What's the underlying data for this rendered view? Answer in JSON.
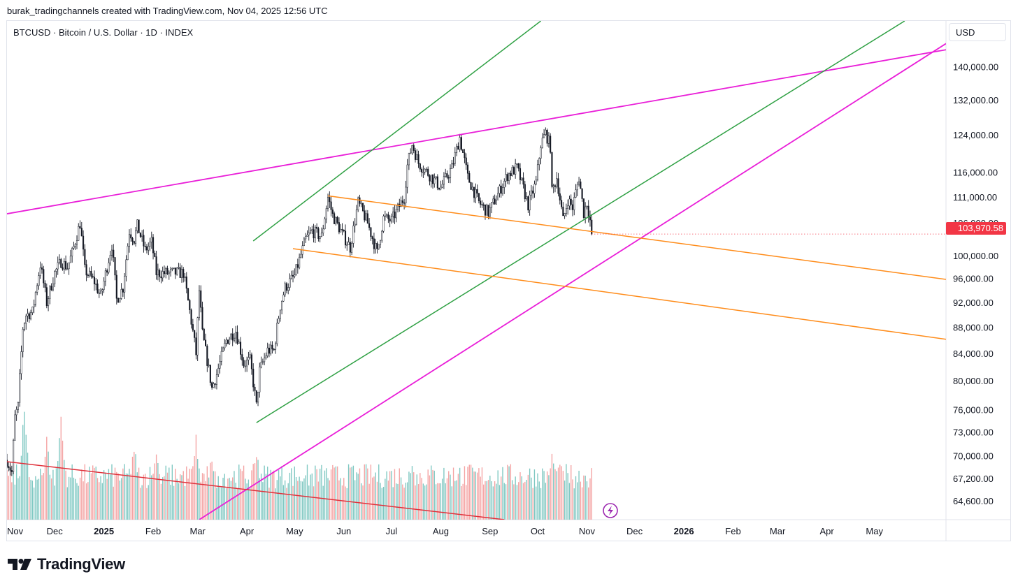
{
  "header": {
    "caption": "burak_tradingchannels created with TradingView.com, Nov 04, 2025 12:56 UTC"
  },
  "legend": {
    "symbol_title": "BTCUSD · Bitcoin / U.S. Dollar · 1D · INDEX"
  },
  "price_scale": {
    "currency": "USD",
    "last_price_label": "103,970.58"
  },
  "footer": {
    "brand": "TradingView"
  },
  "colors": {
    "up": "#26a69a",
    "down": "#ef5350",
    "candle": "#131722",
    "magenta_line": "#e91ed8",
    "green_line": "#2ea043",
    "orange_line": "#ff8c1a",
    "red_line": "#e0313b",
    "last_price_badge": "#f23645",
    "volume_up": "#7fc8c2",
    "volume_down": "#f4a3a3"
  },
  "chart_data": {
    "type": "candlestick",
    "symbol": "BTCUSD",
    "interval": "1D",
    "last_price": 103970.58,
    "y_scale": "log",
    "ylim": [
      62500,
      152000
    ],
    "y_ticks": [
      {
        "v": 140000,
        "label": "140,000.00"
      },
      {
        "v": 132000,
        "label": "132,000.00"
      },
      {
        "v": 124000,
        "label": "124,000.00"
      },
      {
        "v": 116000,
        "label": "116,000.00"
      },
      {
        "v": 111000,
        "label": "111,000.00"
      },
      {
        "v": 106000,
        "label": "106,000.00"
      },
      {
        "v": 100000,
        "label": "100,000.00"
      },
      {
        "v": 96000,
        "label": "96,000.00"
      },
      {
        "v": 92000,
        "label": "92,000.00"
      },
      {
        "v": 88000,
        "label": "88,000.00"
      },
      {
        "v": 84000,
        "label": "84,000.00"
      },
      {
        "v": 80000,
        "label": "80,000.00"
      },
      {
        "v": 76000,
        "label": "76,000.00"
      },
      {
        "v": 73000,
        "label": "73,000.00"
      },
      {
        "v": 70000,
        "label": "70,000.00"
      },
      {
        "v": 67200,
        "label": "67,200.00"
      },
      {
        "v": 64600,
        "label": "64,600.00"
      }
    ],
    "x_range": [
      "2024-11-01",
      "2026-06-15"
    ],
    "x_ticks": [
      {
        "date": "2024-11-01",
        "label": "Nov",
        "bold": false
      },
      {
        "date": "2024-12-01",
        "label": "Dec",
        "bold": false
      },
      {
        "date": "2025-01-01",
        "label": "2025",
        "bold": true
      },
      {
        "date": "2025-02-01",
        "label": "Feb",
        "bold": false
      },
      {
        "date": "2025-03-01",
        "label": "Mar",
        "bold": false
      },
      {
        "date": "2025-04-01",
        "label": "Apr",
        "bold": false
      },
      {
        "date": "2025-05-01",
        "label": "May",
        "bold": false
      },
      {
        "date": "2025-06-01",
        "label": "Jun",
        "bold": false
      },
      {
        "date": "2025-07-01",
        "label": "Jul",
        "bold": false
      },
      {
        "date": "2025-08-01",
        "label": "Aug",
        "bold": false
      },
      {
        "date": "2025-09-01",
        "label": "Sep",
        "bold": false
      },
      {
        "date": "2025-10-01",
        "label": "Oct",
        "bold": false
      },
      {
        "date": "2025-11-01",
        "label": "Nov",
        "bold": false
      },
      {
        "date": "2025-12-01",
        "label": "Dec",
        "bold": false
      },
      {
        "date": "2026-01-01",
        "label": "2026",
        "bold": true
      },
      {
        "date": "2026-02-01",
        "label": "Feb",
        "bold": false
      },
      {
        "date": "2026-03-01",
        "label": "Mar",
        "bold": false
      },
      {
        "date": "2026-04-01",
        "label": "Apr",
        "bold": false
      },
      {
        "date": "2026-05-01",
        "label": "May",
        "bold": false
      }
    ],
    "price_path": [
      [
        "2024-11-01",
        69500
      ],
      [
        "2024-11-04",
        68000
      ],
      [
        "2024-11-06",
        75000
      ],
      [
        "2024-11-08",
        76500
      ],
      [
        "2024-11-11",
        88000
      ],
      [
        "2024-11-13",
        90000
      ],
      [
        "2024-11-17",
        90500
      ],
      [
        "2024-11-22",
        98500
      ],
      [
        "2024-11-26",
        92000
      ],
      [
        "2024-12-01",
        97000
      ],
      [
        "2024-12-05",
        99000
      ],
      [
        "2024-12-09",
        98000
      ],
      [
        "2024-12-12",
        100500
      ],
      [
        "2024-12-17",
        106000
      ],
      [
        "2024-12-20",
        97500
      ],
      [
        "2024-12-26",
        95500
      ],
      [
        "2024-12-30",
        93000
      ],
      [
        "2025-01-06",
        102000
      ],
      [
        "2025-01-09",
        92500
      ],
      [
        "2025-01-13",
        94500
      ],
      [
        "2025-01-17",
        104500
      ],
      [
        "2025-01-20",
        103000
      ],
      [
        "2025-01-22",
        105500
      ],
      [
        "2025-01-27",
        101000
      ],
      [
        "2025-01-31",
        102500
      ],
      [
        "2025-02-03",
        97000
      ],
      [
        "2025-02-10",
        97000
      ],
      [
        "2025-02-20",
        97000
      ],
      [
        "2025-02-25",
        89000
      ],
      [
        "2025-02-28",
        84000
      ],
      [
        "2025-03-02",
        94000
      ],
      [
        "2025-03-04",
        87000
      ],
      [
        "2025-03-10",
        79000
      ],
      [
        "2025-03-13",
        81000
      ],
      [
        "2025-03-19",
        86000
      ],
      [
        "2025-03-25",
        87500
      ],
      [
        "2025-03-30",
        82500
      ],
      [
        "2025-04-03",
        83000
      ],
      [
        "2025-04-07",
        76500
      ],
      [
        "2025-04-09",
        81500
      ],
      [
        "2025-04-14",
        84500
      ],
      [
        "2025-04-18",
        84500
      ],
      [
        "2025-04-22",
        91500
      ],
      [
        "2025-04-25",
        94500
      ],
      [
        "2025-05-01",
        96500
      ],
      [
        "2025-05-08",
        103000
      ],
      [
        "2025-05-12",
        104500
      ],
      [
        "2025-05-18",
        103500
      ],
      [
        "2025-05-22",
        111000
      ],
      [
        "2025-05-25",
        107500
      ],
      [
        "2025-05-31",
        104000
      ],
      [
        "2025-06-05",
        101500
      ],
      [
        "2025-06-10",
        110000
      ],
      [
        "2025-06-16",
        106000
      ],
      [
        "2025-06-22",
        100500
      ],
      [
        "2025-06-26",
        107000
      ],
      [
        "2025-07-01",
        106500
      ],
      [
        "2025-07-09",
        111000
      ],
      [
        "2025-07-11",
        117500
      ],
      [
        "2025-07-14",
        122000
      ],
      [
        "2025-07-18",
        118000
      ],
      [
        "2025-07-25",
        115500
      ],
      [
        "2025-08-01",
        113000
      ],
      [
        "2025-08-08",
        117000
      ],
      [
        "2025-08-13",
        123500
      ],
      [
        "2025-08-18",
        115000
      ],
      [
        "2025-08-25",
        110000
      ],
      [
        "2025-08-31",
        108000
      ],
      [
        "2025-09-05",
        111000
      ],
      [
        "2025-09-12",
        115500
      ],
      [
        "2025-09-18",
        117000
      ],
      [
        "2025-09-25",
        109500
      ],
      [
        "2025-09-30",
        114000
      ],
      [
        "2025-10-03",
        122000
      ],
      [
        "2025-10-06",
        124500
      ],
      [
        "2025-10-09",
        121500
      ],
      [
        "2025-10-10",
        112000
      ],
      [
        "2025-10-13",
        115000
      ],
      [
        "2025-10-17",
        106500
      ],
      [
        "2025-10-20",
        110500
      ],
      [
        "2025-10-23",
        109000
      ],
      [
        "2025-10-27",
        115000
      ],
      [
        "2025-10-30",
        108000
      ],
      [
        "2025-11-01",
        110000
      ],
      [
        "2025-11-03",
        106500
      ],
      [
        "2025-11-04",
        103970.58
      ]
    ],
    "trendlines": [
      {
        "name": "resistance",
        "color": "magenta_line",
        "from": [
          "2024-11-01",
          107800
        ],
        "to": [
          "2026-06-15",
          144400
        ]
      },
      {
        "name": "support",
        "color": "magenta_line",
        "from": [
          "2025-03-02",
          62500
        ],
        "to": [
          "2026-06-15",
          146000
        ]
      },
      {
        "name": "channel-top",
        "color": "green_line",
        "from": [
          "2025-04-05",
          102700
        ],
        "to": [
          "2025-10-03",
          152000
        ]
      },
      {
        "name": "channel-bottom",
        "color": "green_line",
        "from": [
          "2025-04-07",
          74300
        ],
        "to": [
          "2026-05-20",
          152000
        ]
      },
      {
        "name": "descending-top",
        "color": "orange_line",
        "from": [
          "2025-05-22",
          111300
        ],
        "to": [
          "2026-06-15",
          95900
        ]
      },
      {
        "name": "descending-bottom",
        "color": "orange_line",
        "from": [
          "2025-04-30",
          101300
        ],
        "to": [
          "2026-06-15",
          86200
        ]
      },
      {
        "name": "volume-trend",
        "color": "red_line",
        "from": [
          "2024-11-01",
          69300
        ],
        "to": [
          "2025-09-10",
          62500
        ]
      }
    ],
    "volume": {
      "note": "relative volume histogram, bars colored by candle direction",
      "peaks": [
        [
          "2024-11-12",
          1.0
        ],
        [
          "2024-11-26",
          0.8
        ],
        [
          "2024-12-05",
          0.95
        ],
        [
          "2025-01-20",
          0.7
        ],
        [
          "2025-02-03",
          0.65
        ],
        [
          "2025-02-28",
          0.75
        ],
        [
          "2025-03-10",
          0.6
        ],
        [
          "2025-04-07",
          0.65
        ],
        [
          "2025-05-08",
          0.45
        ],
        [
          "2025-07-14",
          0.55
        ],
        [
          "2025-08-13",
          0.45
        ],
        [
          "2025-10-10",
          0.62
        ],
        [
          "2025-10-17",
          0.4
        ]
      ]
    }
  }
}
